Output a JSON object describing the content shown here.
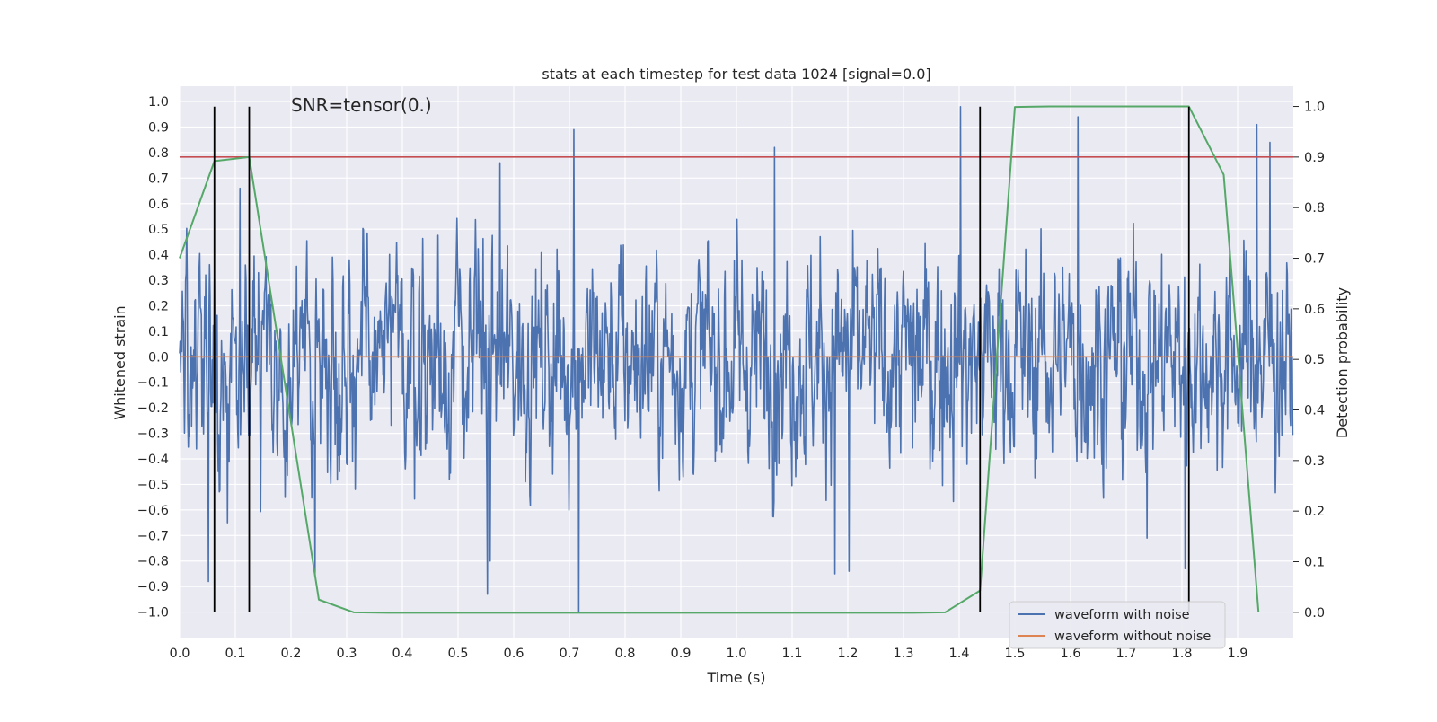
{
  "chart_data": {
    "type": "line",
    "title": "stats at each timestep for test data 1024 [signal=0.0]",
    "annotation": "SNR=tensor(0.)",
    "xlabel": "Time (s)",
    "ylabel": "Whitened strain",
    "y2label": "Detection probability",
    "xlim": [
      0.0,
      2.0
    ],
    "ylim": [
      -1.1,
      1.06
    ],
    "y2lim": [
      -0.05,
      1.04
    ],
    "x_ticks": [
      "0.0",
      "0.1",
      "0.2",
      "0.3",
      "0.4",
      "0.5",
      "0.6",
      "0.7",
      "0.8",
      "0.9",
      "1.0",
      "1.1",
      "1.2",
      "1.3",
      "1.4",
      "1.5",
      "1.6",
      "1.7",
      "1.8",
      "1.9"
    ],
    "y_ticks": [
      "1.0",
      "0.9",
      "0.8",
      "0.7",
      "0.6",
      "0.5",
      "0.4",
      "0.3",
      "0.2",
      "0.1",
      "0.0",
      "−0.1",
      "−0.2",
      "−0.3",
      "−0.4",
      "−0.5",
      "−0.6",
      "−0.7",
      "−0.8",
      "−0.9",
      "−1.0"
    ],
    "y2_ticks": [
      "1.0",
      "0.9",
      "0.8",
      "0.7",
      "0.6",
      "0.5",
      "0.4",
      "0.3",
      "0.2",
      "0.1",
      "0.0"
    ],
    "grid": true,
    "legend_position": "lower-right",
    "series": [
      {
        "name": "waveform with noise",
        "axis": "left",
        "color": "#4c72b0",
        "render": "noise",
        "n_points": 2048,
        "sample_rate_hz": 1024,
        "approx_std": 0.25,
        "y_range": [
          -1.0,
          0.98
        ],
        "peaks": [
          {
            "x": 0.708,
            "y": 0.89
          },
          {
            "x": 1.068,
            "y": 0.82
          },
          {
            "x": 1.402,
            "y": 0.98
          },
          {
            "x": 1.613,
            "y": 0.94
          },
          {
            "x": 1.935,
            "y": 0.91
          },
          {
            "x": 1.958,
            "y": 0.84
          },
          {
            "x": 0.575,
            "y": 0.76
          },
          {
            "x": 0.108,
            "y": 0.66
          },
          {
            "x": 0.717,
            "y": -1.0
          },
          {
            "x": 0.553,
            "y": -0.93
          },
          {
            "x": 0.052,
            "y": -0.88
          },
          {
            "x": 0.243,
            "y": -0.86
          },
          {
            "x": 1.177,
            "y": -0.85
          },
          {
            "x": 1.202,
            "y": -0.84
          },
          {
            "x": 1.806,
            "y": -0.83
          },
          {
            "x": 0.558,
            "y": -0.8
          },
          {
            "x": 1.737,
            "y": -0.71
          },
          {
            "x": 0.086,
            "y": -0.65
          }
        ]
      },
      {
        "name": "waveform without noise",
        "axis": "left",
        "color": "#dd8452",
        "x": [
          0.0,
          2.0
        ],
        "y": [
          0.0,
          0.0
        ]
      },
      {
        "name": "",
        "axis": "right",
        "color": "#55a868",
        "x": [
          0.0,
          0.0625,
          0.125,
          0.25,
          0.3125,
          0.375,
          0.4375,
          0.5,
          0.5625,
          0.625,
          0.6875,
          0.75,
          0.8125,
          0.875,
          0.9375,
          1.0,
          1.0625,
          1.125,
          1.1875,
          1.25,
          1.3125,
          1.375,
          1.4375,
          1.5,
          1.5625,
          1.625,
          1.6875,
          1.75,
          1.8125,
          1.875,
          1.9375
        ],
        "y": [
          0.7,
          0.892,
          0.9,
          0.025,
          0.0,
          -0.001,
          -0.001,
          -0.001,
          -0.001,
          -0.001,
          -0.001,
          -0.001,
          -0.001,
          -0.001,
          -0.001,
          -0.001,
          -0.001,
          -0.001,
          -0.001,
          -0.001,
          -0.001,
          0.0,
          0.043,
          0.999,
          1.0,
          1.0,
          1.0,
          1.0,
          1.0,
          0.865,
          0.0
        ]
      }
    ],
    "threshold_line": {
      "axis": "right",
      "y": 0.9,
      "color": "#c44e52"
    },
    "vertical_markers": {
      "x": [
        0.0625,
        0.125,
        1.4375,
        1.8125
      ],
      "y_range": [
        -1.0,
        0.98
      ],
      "color": "#000000"
    }
  }
}
